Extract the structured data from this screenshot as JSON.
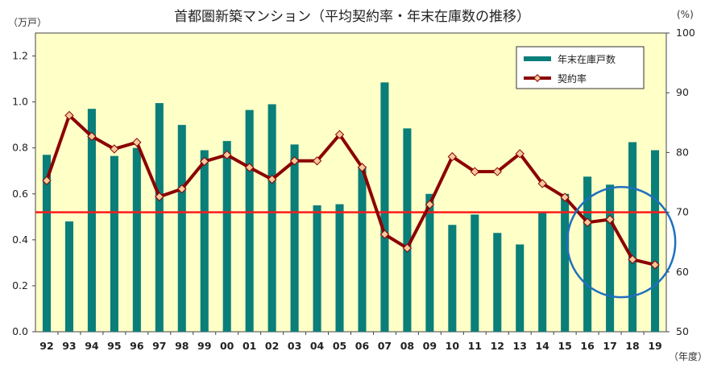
{
  "chart_data": {
    "type": "bar",
    "title": "首都圏新築マンション（平均契約率・年末在庫数の推移）",
    "left_axis_unit": "（万戸）",
    "right_axis_unit": "(%)",
    "x_axis_unit": "（年度）",
    "categories": [
      "92",
      "93",
      "94",
      "95",
      "96",
      "97",
      "98",
      "99",
      "00",
      "01",
      "02",
      "03",
      "04",
      "05",
      "06",
      "07",
      "08",
      "09",
      "10",
      "11",
      "12",
      "13",
      "14",
      "15",
      "16",
      "17",
      "18",
      "19"
    ],
    "series": [
      {
        "name": "年末在庫戸数",
        "type": "bar",
        "axis": "left",
        "color": "#0a7e79",
        "values": [
          0.77,
          0.48,
          0.97,
          0.765,
          0.8,
          0.995,
          0.9,
          0.79,
          0.83,
          0.965,
          0.99,
          0.815,
          0.55,
          0.555,
          0.72,
          1.085,
          0.885,
          0.6,
          0.465,
          0.51,
          0.43,
          0.38,
          0.52,
          0.6,
          0.675,
          0.64,
          0.825,
          0.79
        ]
      },
      {
        "name": "契約率",
        "type": "line",
        "axis": "right",
        "color": "#8b0000",
        "marker_color": "#f6c99a",
        "values": [
          75.3,
          86.2,
          82.7,
          80.6,
          81.7,
          72.6,
          73.9,
          78.5,
          79.6,
          77.5,
          75.5,
          78.6,
          78.6,
          83.0,
          77.5,
          66.3,
          64.0,
          71.3,
          79.3,
          76.8,
          76.8,
          79.8,
          74.8,
          72.5,
          68.3,
          68.8,
          62.1,
          61.2
        ]
      }
    ],
    "ylim_left": [
      0,
      1.3
    ],
    "yticks_left": [
      "0.0",
      "0.2",
      "0.4",
      "0.6",
      "0.8",
      "1.0",
      "1.2"
    ],
    "ylim_right": [
      50,
      100
    ],
    "yticks_right": [
      "50",
      "60",
      "70",
      "80",
      "90",
      "100"
    ],
    "reference_line": {
      "axis": "right",
      "value": 70,
      "color": "#ff1a1a"
    },
    "highlight_circle": {
      "from_category": "16",
      "to_category": "19",
      "color": "#1f6fbf"
    },
    "legend_position": "top-right",
    "plot_background": "#ffffc8",
    "grid": false
  }
}
